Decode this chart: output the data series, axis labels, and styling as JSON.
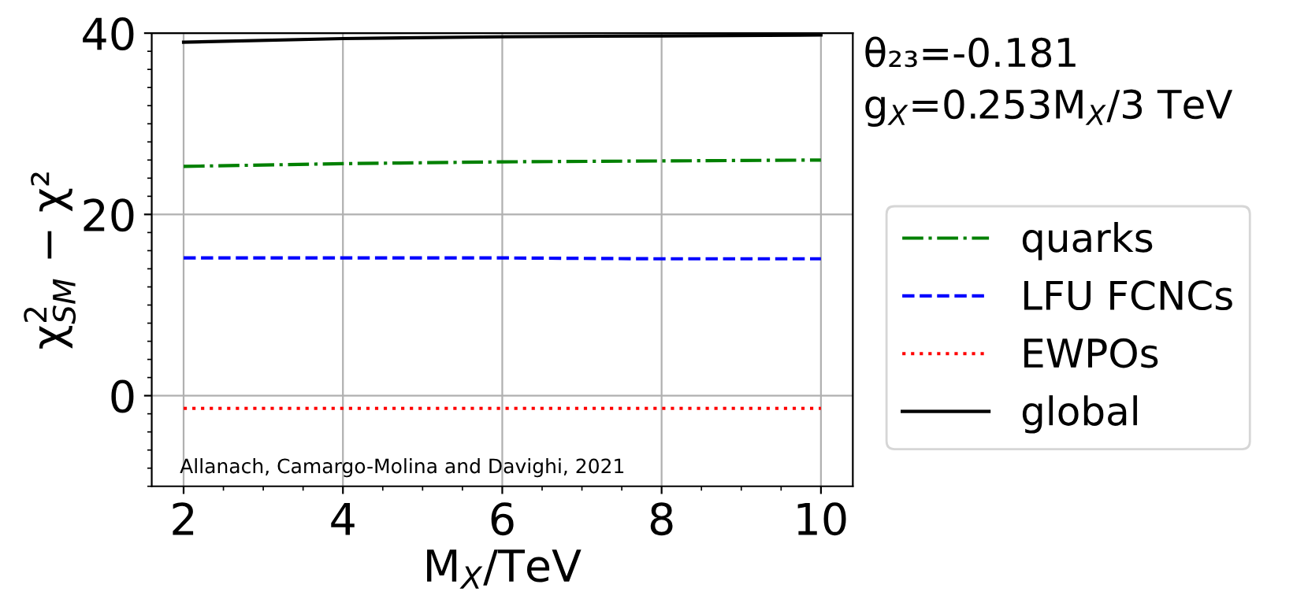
{
  "chart_data": {
    "type": "line",
    "xlabel": "M$_{X}$/TeV",
    "ylabel": "χ$^{2}$$_{SM}$ − χ²",
    "x": [
      2,
      4,
      6,
      8,
      10
    ],
    "series": [
      {
        "name": "quarks",
        "color": "#008000",
        "line_style": "dashdot",
        "values": [
          25.3,
          25.6,
          25.8,
          25.9,
          26.0
        ]
      },
      {
        "name": "LFU FCNCs",
        "color": "#0000ff",
        "line_style": "dashed",
        "values": [
          15.2,
          15.2,
          15.2,
          15.1,
          15.1
        ]
      },
      {
        "name": "EWPOs",
        "color": "#ff0000",
        "line_style": "dotted",
        "values": [
          -1.4,
          -1.4,
          -1.4,
          -1.4,
          -1.4
        ]
      },
      {
        "name": "global",
        "color": "#000000",
        "line_style": "solid",
        "values": [
          39.0,
          39.4,
          39.6,
          39.7,
          39.8
        ]
      }
    ],
    "xlim": [
      1.6,
      10.4
    ],
    "ylim": [
      -10,
      40
    ],
    "xticks": [
      2,
      4,
      6,
      8,
      10
    ],
    "yticks": [
      0,
      20,
      40
    ],
    "grid": true,
    "legend": "right",
    "marker": "none",
    "annotations": [
      "θ₂₃=-0.181",
      "g$_{X}$=0.253M$_{X}$/3 TeV",
      "Allanach, Camargo-Molina and Davighi, 2021"
    ]
  }
}
